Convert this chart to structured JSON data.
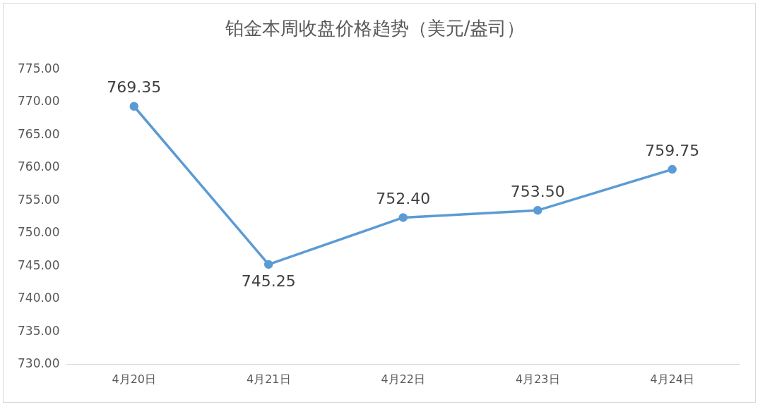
{
  "chart_data": {
    "type": "line",
    "title": "铂金本周收盘价格趋势（美元/盎司）",
    "categories": [
      "4月20日",
      "4月21日",
      "4月22日",
      "4月23日",
      "4月24日"
    ],
    "series": [
      {
        "color": "#5b9bd5",
        "values": [
          769.35,
          745.25,
          752.4,
          753.5,
          759.75
        ],
        "value_labels": [
          "769.35",
          "745.25",
          "752.40",
          "753.50",
          "759.75"
        ]
      }
    ],
    "ylim": [
      730,
      775
    ],
    "yticks": [
      {
        "value": 730,
        "label": "730.00"
      },
      {
        "value": 735,
        "label": "735.00"
      },
      {
        "value": 740,
        "label": "740.00"
      },
      {
        "value": 745,
        "label": "745.00"
      },
      {
        "value": 750,
        "label": "750.00"
      },
      {
        "value": 755,
        "label": "755.00"
      },
      {
        "value": 760,
        "label": "760.00"
      },
      {
        "value": 765,
        "label": "765.00"
      },
      {
        "value": 770,
        "label": "770.00"
      },
      {
        "value": 775,
        "label": "775.00"
      }
    ],
    "grid": false,
    "legend": false,
    "marker": "circle",
    "line_style": "solid"
  }
}
